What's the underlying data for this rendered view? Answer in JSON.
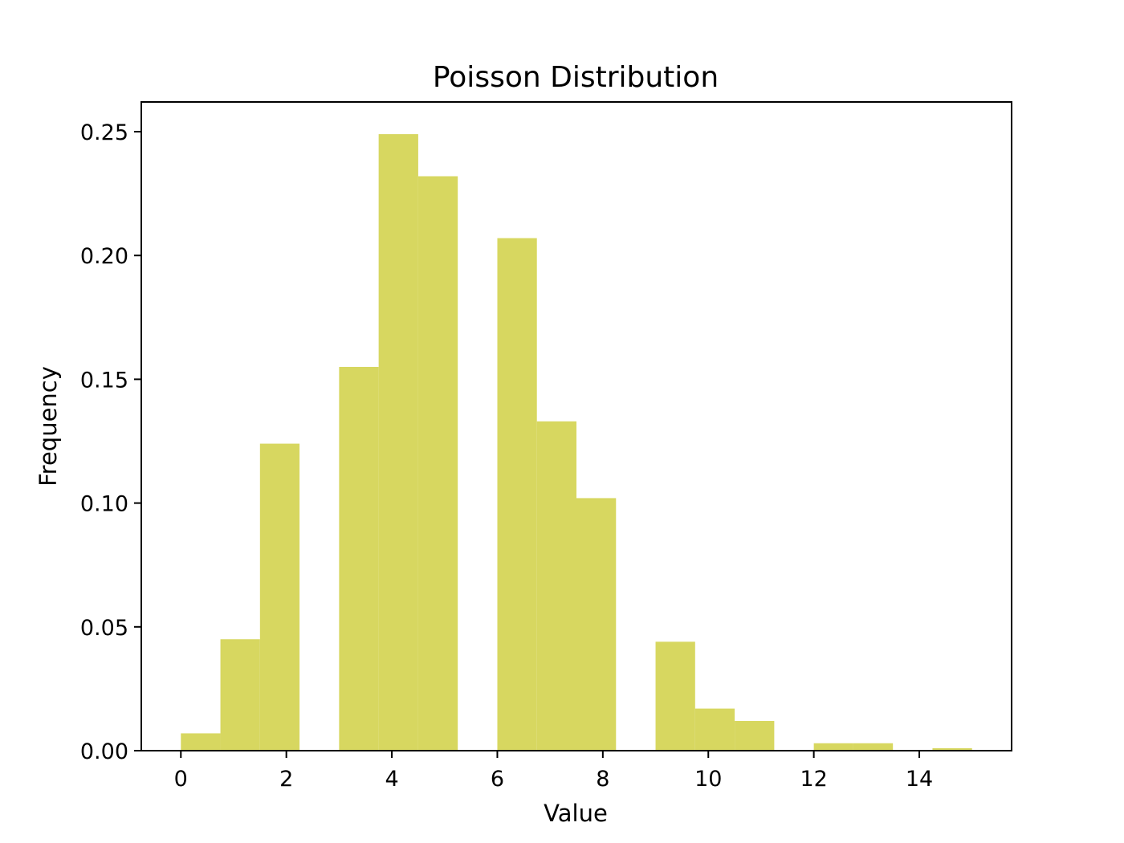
{
  "chart_data": {
    "type": "bar",
    "title": "Poisson Distribution",
    "xlabel": "Value",
    "ylabel": "Frequency",
    "xlim": [
      -0.75,
      15.75
    ],
    "ylim": [
      0,
      0.262
    ],
    "xticks": [
      0,
      2,
      4,
      6,
      8,
      10,
      12,
      14
    ],
    "yticks": [
      0.0,
      0.05,
      0.1,
      0.15,
      0.2,
      0.25
    ],
    "ytick_labels": [
      "0.00",
      "0.05",
      "0.10",
      "0.15",
      "0.20",
      "0.25"
    ],
    "bar_color": "#d7d760",
    "grid": false,
    "legend": "none",
    "series": [
      {
        "bins": [
          {
            "x0": 0.0,
            "x1": 0.75,
            "value": 0.007
          },
          {
            "x0": 0.75,
            "x1": 1.5,
            "value": 0.045
          },
          {
            "x0": 1.5,
            "x1": 2.25,
            "value": 0.124
          },
          {
            "x0": 2.25,
            "x1": 3.0,
            "value": 0.0
          },
          {
            "x0": 3.0,
            "x1": 3.75,
            "value": 0.155
          },
          {
            "x0": 3.75,
            "x1": 4.5,
            "value": 0.249
          },
          {
            "x0": 4.5,
            "x1": 5.25,
            "value": 0.232
          },
          {
            "x0": 5.25,
            "x1": 6.0,
            "value": 0.0
          },
          {
            "x0": 6.0,
            "x1": 6.75,
            "value": 0.207
          },
          {
            "x0": 6.75,
            "x1": 7.5,
            "value": 0.133
          },
          {
            "x0": 7.5,
            "x1": 8.25,
            "value": 0.102
          },
          {
            "x0": 8.25,
            "x1": 9.0,
            "value": 0.0
          },
          {
            "x0": 9.0,
            "x1": 9.75,
            "value": 0.044
          },
          {
            "x0": 9.75,
            "x1": 10.5,
            "value": 0.017
          },
          {
            "x0": 10.5,
            "x1": 11.25,
            "value": 0.012
          },
          {
            "x0": 11.25,
            "x1": 12.0,
            "value": 0.0
          },
          {
            "x0": 12.0,
            "x1": 12.75,
            "value": 0.003
          },
          {
            "x0": 12.75,
            "x1": 13.5,
            "value": 0.003
          },
          {
            "x0": 13.5,
            "x1": 14.25,
            "value": 0.0
          },
          {
            "x0": 14.25,
            "x1": 15.0,
            "value": 0.001
          }
        ]
      }
    ]
  }
}
